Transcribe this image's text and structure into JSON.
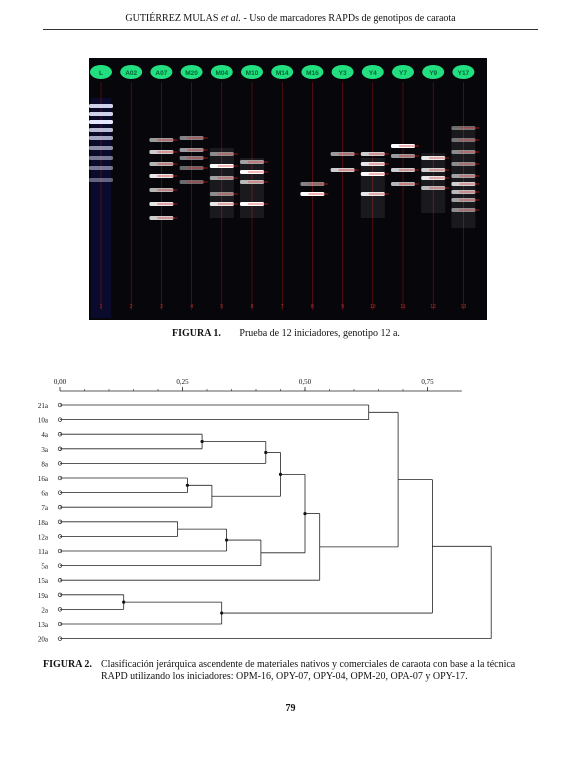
{
  "header": {
    "author": "GUTIÉRREZ MULAS",
    "etal": "et al.",
    "title_rest": " - Uso de marcadores RAPDs de genotipos de caraota"
  },
  "figure1": {
    "label": "FIGURA 1.",
    "caption": "Prueba de 12 iniciadores, genotipo 12 a.",
    "lanes": [
      "L",
      "A02",
      "A07",
      "M20",
      "M04",
      "M10",
      "M14",
      "M16",
      "Y3",
      "Y4",
      "Y7",
      "Y9",
      "Y17"
    ],
    "lane_numbers": [
      "1",
      "2",
      "3",
      "4",
      "5",
      "6",
      "7",
      "8",
      "9",
      "10",
      "11",
      "12",
      "13"
    ]
  },
  "figure2": {
    "label": "FIGURA 2.",
    "caption_line1": "Clasificación jerárquica ascendente de materiales nativos y comerciales de caraota con base a la técnica",
    "caption_line2": "RAPD utilizando los iniciadores: OPM-16, OPY-07, OPY-04, OPM-20, OPA-07 y OPY-17.",
    "axis_ticks": [
      "0,00",
      "0,25",
      "0,50",
      "0,75"
    ],
    "leaves": [
      "21a",
      "10a",
      "4a",
      "3a",
      "8a",
      "16a",
      "6a",
      "7a",
      "18a",
      "12a",
      "11a",
      "5a",
      "15a",
      "19a",
      "2a",
      "13a",
      "20a"
    ]
  },
  "page_number": "79"
}
